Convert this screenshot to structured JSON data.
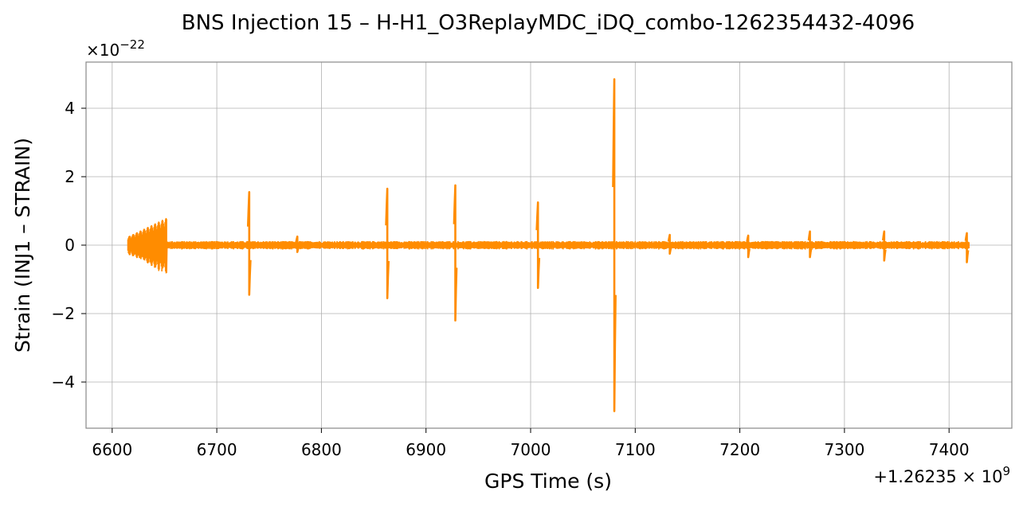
{
  "chart_data": {
    "type": "line",
    "title": "BNS Injection 15 – H-H1_O3ReplayMDC_iDQ_combo-1262354432-4096",
    "xlabel": "GPS Time (s)",
    "ylabel": "Strain (INJ1 – STRAIN)",
    "y_multiplier_base": "×10",
    "y_multiplier_exp": "−22",
    "x_offset_base": "+1.26235 × 10",
    "x_offset_exp": "9",
    "x_offset_value": 1262350000,
    "xlim": [
      6575,
      7460
    ],
    "ylim": [
      -5.35,
      5.35
    ],
    "y_scale_factor": 1e-22,
    "xticks": [
      6600,
      6700,
      6800,
      6900,
      7000,
      7100,
      7200,
      7300,
      7400
    ],
    "xtick_labels": [
      "6600",
      "6700",
      "6800",
      "6900",
      "7000",
      "7100",
      "7200",
      "7300",
      "7400"
    ],
    "yticks": [
      -4,
      -2,
      0,
      2,
      4
    ],
    "ytick_labels": [
      "−4",
      "−2",
      "0",
      "2",
      "4"
    ],
    "grid": true,
    "line_color": "#ff8c00",
    "series": [
      {
        "x_range": [
          6615,
          7419
        ],
        "background_noise_amplitude": 0.12,
        "early_burst": {
          "x_range": [
            6615,
            6652
          ],
          "max_amplitude": 0.8,
          "min_amplitude": -0.85
        },
        "spikes": [
          {
            "x": 6731,
            "max": 1.55,
            "min": -1.45
          },
          {
            "x": 6777,
            "max": 0.25,
            "min": -0.2
          },
          {
            "x": 6863,
            "max": 1.65,
            "min": -1.55
          },
          {
            "x": 6928,
            "max": 1.75,
            "min": -2.2
          },
          {
            "x": 7007,
            "max": 1.25,
            "min": -1.25
          },
          {
            "x": 7080,
            "max": 4.85,
            "min": -4.85
          },
          {
            "x": 7133,
            "max": 0.3,
            "min": -0.25
          },
          {
            "x": 7208,
            "max": 0.28,
            "min": -0.35
          },
          {
            "x": 7267,
            "max": 0.4,
            "min": -0.35
          },
          {
            "x": 7338,
            "max": 0.4,
            "min": -0.45
          },
          {
            "x": 7417,
            "max": 0.35,
            "min": -0.5
          }
        ]
      }
    ]
  }
}
